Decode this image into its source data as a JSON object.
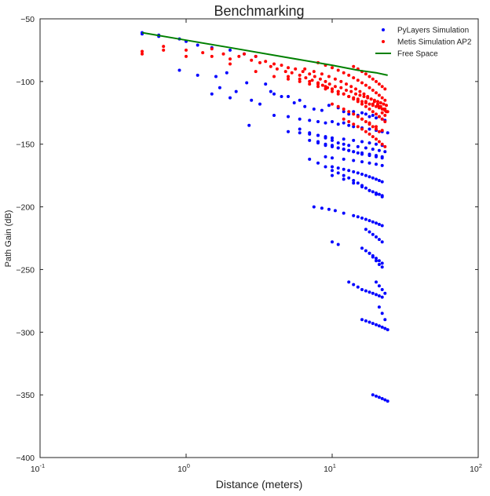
{
  "chart_data": {
    "type": "scatter",
    "title": "Benchmarking",
    "xlabel": "Distance (meters)",
    "ylabel": "Path Gain (dB)",
    "xscale": "log",
    "xlim": [
      0.1,
      100
    ],
    "ylim": [
      -400,
      -50
    ],
    "x_ticks": [
      {
        "value": 0.1,
        "base": "10",
        "exp": "-1"
      },
      {
        "value": 1,
        "base": "10",
        "exp": "0"
      },
      {
        "value": 10,
        "base": "10",
        "exp": "1"
      },
      {
        "value": 100,
        "base": "10",
        "exp": "2"
      }
    ],
    "y_ticks": [
      -50,
      -100,
      -150,
      -200,
      -250,
      -300,
      -350,
      -400
    ],
    "grid": false,
    "legend_position": "top-right",
    "colors": {
      "pylayers": "#0000ff",
      "metis": "#ff0000",
      "free_space": "#008000"
    },
    "series": [
      {
        "name": "PyLayers Simulation",
        "kind": "scatter",
        "color": "#0000ff",
        "x": [
          0.5,
          0.5,
          0.65,
          0.65,
          0.9,
          1.0,
          1.2,
          1.5,
          2.0,
          2.5,
          3.0,
          0.9,
          1.2,
          1.6,
          1.9,
          2.6,
          2.0,
          1.5,
          1.7,
          2.2,
          2.8,
          3.5,
          4.0,
          5.0,
          6.0,
          2.7,
          3.2,
          3.8,
          4.5,
          5.5,
          6.5,
          7.5,
          8.5,
          9.5,
          11.0,
          12.0,
          13.0,
          14.0,
          15.0,
          16.0,
          17.0,
          18.0,
          19.0,
          20.0,
          21.0,
          22.0,
          23.0,
          4.0,
          5.0,
          6.0,
          7.0,
          8.0,
          9.0,
          10.0,
          11.0,
          12.0,
          13.0,
          14.0,
          16.0,
          18.0,
          20.0,
          22.0,
          24.0,
          5.0,
          6.0,
          7.0,
          8.0,
          9.0,
          10.0,
          12.0,
          14.0,
          16.0,
          18.0,
          20.0,
          22.0,
          6.0,
          7.0,
          8.0,
          9.0,
          10.0,
          11.0,
          12.0,
          13.0,
          15.0,
          17.0,
          19.0,
          21.0,
          23.0,
          8.0,
          9.0,
          10.0,
          11.0,
          12.0,
          13.0,
          14.0,
          15.0,
          16.0,
          18.0,
          20.0,
          22.0,
          7.0,
          8.0,
          9.0,
          10.0,
          11.0,
          12.0,
          13.0,
          14.0,
          16.0,
          18.0,
          20.0,
          22.0,
          9.0,
          10.0,
          12.0,
          14.0,
          16.0,
          18.0,
          20.0,
          22.0,
          10.0,
          11.0,
          12.0,
          13.0,
          14.0,
          15.0,
          16.0,
          17.0,
          18.0,
          19.0,
          20.0,
          21.0,
          22.0,
          7.0,
          8.0,
          9.0,
          10.0,
          11.0,
          12.0,
          13.0,
          14.0,
          15.0,
          16.0,
          17.0,
          18.0,
          19.0,
          20.0,
          21.0,
          22.0,
          10.0,
          12.0,
          14.0,
          16.0,
          18.0,
          20.0,
          22.0,
          7.5,
          8.5,
          9.5,
          10.5,
          12.0,
          14.0,
          15.0,
          16.0,
          17.0,
          18.0,
          19.0,
          20.0,
          21.0,
          22.0,
          17.0,
          18.0,
          19.0,
          20.0,
          21.0,
          22.0,
          10.0,
          11.0,
          16.0,
          17.0,
          18.0,
          19.0,
          20.0,
          21.0,
          22.0,
          18.0,
          19.0,
          20.0,
          21.0,
          22.0,
          13.0,
          14.0,
          15.0,
          16.0,
          17.0,
          18.0,
          19.0,
          20.0,
          21.0,
          22.0,
          20.0,
          21.0,
          22.0,
          23.0,
          21.0,
          22.0,
          23.0,
          16.0,
          17.0,
          18.0,
          19.0,
          20.0,
          21.0,
          22.0,
          23.0,
          24.0,
          19.0,
          20.0,
          21.0,
          22.0,
          23.0,
          24.0
        ],
        "y": [
          -61,
          -62,
          -63,
          -64,
          -66,
          -68,
          -71,
          -73,
          -75,
          -78,
          -80,
          -91,
          -95,
          -96,
          -93,
          -101,
          -113,
          -110,
          -105,
          -108,
          -115,
          -102,
          -110,
          -112,
          -115,
          -135,
          -118,
          -108,
          -112,
          -117,
          -120,
          -122,
          -123,
          -119,
          -121,
          -124,
          -126,
          -124,
          -127,
          -125,
          -126,
          -128,
          -127,
          -129,
          -128,
          -130,
          -131,
          -127,
          -128,
          -130,
          -131,
          -132,
          -133,
          -132,
          -134,
          -133,
          -135,
          -136,
          -137,
          -138,
          -139,
          -140,
          -141,
          -140,
          -141,
          -142,
          -143,
          -144,
          -145,
          -146,
          -147,
          -148,
          -149,
          -150,
          -151,
          -138,
          -141,
          -143,
          -145,
          -147,
          -149,
          -150,
          -151,
          -152,
          -153,
          -154,
          -155,
          -156,
          -148,
          -150,
          -151,
          -153,
          -154,
          -155,
          -156,
          -157,
          -158,
          -159,
          -160,
          -161,
          -147,
          -149,
          -151,
          -152,
          -153,
          -154,
          -155,
          -156,
          -157,
          -158,
          -159,
          -160,
          -160,
          -161,
          -162,
          -163,
          -164,
          -165,
          -166,
          -167,
          -168,
          -169,
          -170,
          -171,
          -172,
          -173,
          -174,
          -175,
          -176,
          -177,
          -178,
          -179,
          -180,
          -162,
          -165,
          -168,
          -171,
          -173,
          -175,
          -177,
          -179,
          -181,
          -183,
          -185,
          -187,
          -188,
          -189,
          -190,
          -191,
          -175,
          -178,
          -181,
          -184,
          -187,
          -190,
          -192,
          -200,
          -201,
          -202,
          -203,
          -205,
          -207,
          -208,
          -209,
          -210,
          -211,
          -212,
          -213,
          -214,
          -215,
          -218,
          -220,
          -222,
          -224,
          -226,
          -228,
          -228,
          -230,
          -233,
          -235,
          -237,
          -239,
          -241,
          -243,
          -245,
          -237,
          -240,
          -243,
          -246,
          -248,
          -260,
          -262,
          -264,
          -266,
          -267,
          -268,
          -269,
          -270,
          -271,
          -272,
          -260,
          -263,
          -266,
          -269,
          -280,
          -285,
          -290,
          -290,
          -291,
          -292,
          -293,
          -294,
          -295,
          -296,
          -297,
          -298,
          -350,
          -351,
          -352,
          -353,
          -354,
          -355
        ]
      },
      {
        "name": "Metis Simulation AP2",
        "kind": "scatter",
        "color": "#ff0000",
        "x": [
          0.5,
          0.5,
          0.7,
          0.7,
          1.0,
          1.0,
          1.3,
          1.5,
          1.5,
          1.8,
          2.0,
          2.0,
          2.3,
          2.5,
          2.8,
          3.0,
          3.2,
          3.5,
          3.8,
          4.0,
          4.2,
          4.5,
          4.8,
          5.0,
          5.3,
          5.6,
          6.0,
          6.3,
          6.6,
          7.0,
          7.3,
          7.6,
          8.0,
          8.3,
          8.6,
          9.0,
          9.3,
          9.6,
          10.0,
          10.5,
          11.0,
          11.5,
          12.0,
          12.5,
          13.0,
          13.5,
          14.0,
          14.5,
          15.0,
          15.5,
          16.0,
          16.5,
          17.0,
          17.5,
          18.0,
          18.5,
          19.0,
          19.5,
          20.0,
          20.5,
          21.0,
          21.5,
          22.0,
          22.5,
          23.0,
          23.5,
          24.0,
          5.0,
          6.0,
          7.0,
          8.0,
          9.0,
          10.0,
          11.0,
          12.0,
          13.0,
          14.0,
          15.0,
          16.0,
          17.0,
          18.0,
          19.0,
          20.0,
          21.0,
          22.0,
          23.0,
          6.5,
          7.5,
          8.5,
          9.5,
          10.5,
          11.5,
          12.5,
          13.5,
          14.5,
          15.5,
          16.5,
          17.5,
          18.5,
          19.5,
          20.5,
          21.5,
          22.5,
          23.5,
          8.0,
          9.0,
          10.0,
          11.0,
          12.0,
          13.0,
          14.0,
          15.0,
          16.0,
          17.0,
          18.0,
          19.0,
          20.0,
          21.0,
          22.0,
          23.0,
          10.0,
          11.0,
          12.0,
          13.0,
          14.0,
          15.0,
          16.0,
          17.0,
          18.0,
          19.0,
          20.0,
          21.0,
          22.0,
          23.0,
          12.0,
          13.0,
          14.0,
          15.0,
          16.0,
          17.0,
          18.0,
          19.0,
          20.0,
          21.0,
          22.0,
          23.0,
          14.0,
          15.0,
          16.0,
          17.0,
          18.0,
          19.0,
          20.0,
          21.0,
          22.0,
          23.0,
          3.0,
          4.0,
          5.0,
          6.0,
          7.0,
          8.0,
          9.0,
          10.0,
          11.0,
          13.0,
          15.0,
          17.0,
          19.0,
          21.0,
          23.0,
          16.0,
          18.0,
          20.0,
          22.0
        ],
        "y": [
          -76,
          -78,
          -72,
          -75,
          -75,
          -80,
          -77,
          -74,
          -80,
          -78,
          -82,
          -86,
          -80,
          -78,
          -83,
          -80,
          -85,
          -84,
          -88,
          -86,
          -90,
          -87,
          -92,
          -89,
          -93,
          -90,
          -95,
          -92,
          -97,
          -94,
          -99,
          -96,
          -101,
          -98,
          -103,
          -100,
          -105,
          -102,
          -106,
          -104,
          -108,
          -105,
          -110,
          -107,
          -112,
          -108,
          -113,
          -110,
          -115,
          -111,
          -116,
          -112,
          -117,
          -113,
          -118,
          -114,
          -119,
          -115,
          -120,
          -116,
          -121,
          -117,
          -122,
          -118,
          -123,
          -119,
          -124,
          -96,
          -98,
          -100,
          -102,
          -104,
          -106,
          -108,
          -110,
          -112,
          -114,
          -116,
          -118,
          -120,
          -122,
          -124,
          -126,
          -128,
          -130,
          -132,
          -90,
          -92,
          -94,
          -96,
          -98,
          -100,
          -102,
          -104,
          -106,
          -108,
          -110,
          -112,
          -114,
          -116,
          -118,
          -120,
          -122,
          -124,
          -85,
          -87,
          -89,
          -91,
          -93,
          -95,
          -97,
          -99,
          -101,
          -103,
          -105,
          -107,
          -109,
          -111,
          -113,
          -115,
          -118,
          -120,
          -122,
          -124,
          -126,
          -128,
          -130,
          -132,
          -134,
          -136,
          -138,
          -140,
          -125,
          -127,
          -130,
          -132,
          -134,
          -136,
          -138,
          -140,
          -142,
          -144,
          -146,
          -148,
          -150,
          -152,
          -88,
          -90,
          -92,
          -94,
          -96,
          -98,
          -100,
          -102,
          -104,
          -106,
          -92,
          -96,
          -98,
          -100,
          -102,
          -104,
          -106,
          -108,
          -110,
          -112,
          -114,
          -116,
          -118,
          -120,
          -122,
          -130,
          -133,
          -136,
          -139
        ]
      },
      {
        "name": "Free Space",
        "kind": "line",
        "color": "#008000",
        "x": [
          0.5,
          1.0,
          2.0,
          5.0,
          10.0,
          15.0,
          20.0,
          24.0
        ],
        "y": [
          -61,
          -67,
          -73,
          -81,
          -87,
          -91,
          -93,
          -95
        ]
      }
    ]
  }
}
